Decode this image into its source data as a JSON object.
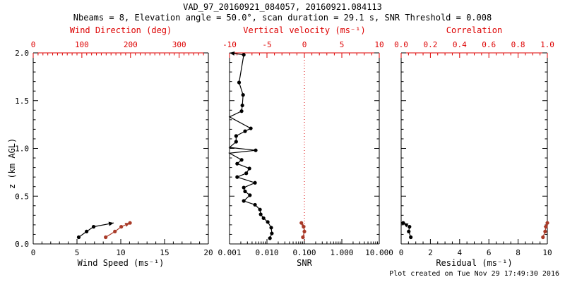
{
  "title": "VAD_97_20160921_084057, 20160921.084113",
  "subtitle": "Nbeams = 8, Elevation angle = 50.0°, scan duration = 29.1 s, SNR Threshold = 0.008",
  "footer": "Plot created on Tue Nov 29 17:49:30 2016",
  "ylabel": "z (km AGL)",
  "colors": {
    "black": "#000000",
    "axis_red": "#dd0000",
    "data_red": "#a93a28",
    "background": "#ffffff"
  },
  "yaxis": {
    "label": "z (km AGL)",
    "min": 0,
    "max": 2,
    "minor_step": 0.1,
    "ticks": [
      [
        0,
        "0.0"
      ],
      [
        0.5,
        "0.5"
      ],
      [
        1,
        "1.0"
      ],
      [
        1.5,
        "1.5"
      ],
      [
        2,
        "2.0"
      ]
    ]
  },
  "chart_data": [
    {
      "name": "wind-panel",
      "type": "line",
      "show_ylabels": true,
      "axes": {
        "bottom": {
          "label": "Wind Speed (ms⁻¹)",
          "scale": "linear",
          "min": 0,
          "max": 20,
          "minor_step": 1,
          "ticks": [
            [
              0,
              "0"
            ],
            [
              5,
              "5"
            ],
            [
              10,
              "10"
            ],
            [
              15,
              "15"
            ],
            [
              20,
              "20"
            ]
          ]
        },
        "top": {
          "label": "Wind Direction (deg)",
          "scale": "linear",
          "min": 0,
          "max": 360,
          "minor_step": 10,
          "ticks": [
            [
              0,
              "0"
            ],
            [
              100,
              "100"
            ],
            [
              200,
              "200"
            ],
            [
              300,
              "300"
            ]
          ]
        }
      },
      "series": [
        {
          "name": "wind-speed",
          "axis": "bottom",
          "color": "black",
          "arrow": true,
          "points": [
            [
              5.2,
              0.07
            ],
            [
              6.1,
              0.13
            ],
            [
              6.9,
              0.18
            ],
            [
              9.2,
              0.22,
              0
            ]
          ]
        },
        {
          "name": "wind-direction",
          "axis": "top",
          "color": "red",
          "arrow": true,
          "points": [
            [
              149,
              0.07
            ],
            [
              168,
              0.13
            ],
            [
              181,
              0.18
            ],
            [
              199,
              0.22
            ]
          ]
        }
      ]
    },
    {
      "name": "snr-panel",
      "type": "line",
      "show_ylabels": false,
      "axes": {
        "bottom": {
          "label": "SNR",
          "scale": "log",
          "min": 0.001,
          "max": 10,
          "ticks": [
            [
              0.001,
              "0.001"
            ],
            [
              0.01,
              "0.010"
            ],
            [
              0.1,
              "0.100"
            ],
            [
              1,
              "1.000"
            ],
            [
              10,
              "10.000"
            ]
          ]
        },
        "top": {
          "label": "Vertical velocity (ms⁻¹)",
          "scale": "linear",
          "min": -10,
          "max": 10,
          "minor_step": 1,
          "ticks": [
            [
              -10,
              "-10"
            ],
            [
              -5,
              "-5"
            ],
            [
              0,
              "0"
            ],
            [
              5,
              "5"
            ],
            [
              10,
              "10"
            ]
          ]
        }
      },
      "refline": {
        "axis": "top",
        "value": 0,
        "style": "dotted",
        "color": "red"
      },
      "series": [
        {
          "name": "snr-profile",
          "axis": "bottom",
          "color": "black",
          "arrow": true,
          "points": [
            [
              0.012,
              0.06
            ],
            [
              0.0135,
              0.11
            ],
            [
              0.013,
              0.17
            ],
            [
              0.0105,
              0.23
            ],
            [
              0.0081,
              0.27
            ],
            [
              0.0068,
              0.31
            ],
            [
              0.0065,
              0.36
            ],
            [
              0.0048,
              0.41
            ],
            [
              0.0024,
              0.45
            ],
            [
              0.0035,
              0.51
            ],
            [
              0.0026,
              0.55
            ],
            [
              0.0024,
              0.59
            ],
            [
              0.0048,
              0.64
            ],
            [
              0.0016,
              0.7
            ],
            [
              0.0028,
              0.74
            ],
            [
              0.0034,
              0.79
            ],
            [
              0.0016,
              0.84
            ],
            [
              0.0021,
              0.88
            ],
            [
              0.001,
              0.95,
              0
            ],
            [
              0.005,
              0.98
            ],
            [
              0.001,
              1.01,
              0
            ],
            [
              0.0015,
              1.07
            ],
            [
              0.0015,
              1.13
            ],
            [
              0.0026,
              1.18
            ],
            [
              0.0037,
              1.21
            ],
            [
              0.001,
              1.33,
              0
            ],
            [
              0.0021,
              1.39
            ],
            [
              0.0022,
              1.45
            ],
            [
              0.0023,
              1.56
            ],
            [
              0.0018,
              1.69
            ],
            [
              0.0024,
              1.98
            ],
            [
              0.001,
              2.0,
              0
            ]
          ]
        },
        {
          "name": "vertical-velocity",
          "axis": "top",
          "color": "red",
          "arrow": true,
          "points": [
            [
              -0.2,
              0.07
            ],
            [
              0,
              0.13
            ],
            [
              -0.1,
              0.18
            ],
            [
              -0.4,
              0.22
            ]
          ]
        }
      ]
    },
    {
      "name": "fit-panel",
      "type": "line",
      "show_ylabels": false,
      "axes": {
        "bottom": {
          "label": "Residual (ms⁻¹)",
          "scale": "linear",
          "min": 0,
          "max": 10,
          "minor_step": 0.5,
          "ticks": [
            [
              0,
              "0"
            ],
            [
              2,
              "2"
            ],
            [
              4,
              "4"
            ],
            [
              6,
              "6"
            ],
            [
              8,
              "8"
            ],
            [
              10,
              "10"
            ]
          ]
        },
        "top": {
          "label": "Correlation",
          "scale": "linear",
          "min": 0,
          "max": 1,
          "minor_step": 0.05,
          "ticks": [
            [
              0,
              "0.0"
            ],
            [
              0.2,
              "0.2"
            ],
            [
              0.4,
              "0.4"
            ],
            [
              0.6,
              "0.6"
            ],
            [
              0.8,
              "0.8"
            ],
            [
              1,
              "1.0"
            ]
          ]
        }
      },
      "series": [
        {
          "name": "residual",
          "axis": "bottom",
          "color": "black",
          "arrow": true,
          "points": [
            [
              0.66,
              0.07
            ],
            [
              0.52,
              0.13
            ],
            [
              0.57,
              0.18
            ],
            [
              0.14,
              0.22
            ]
          ]
        },
        {
          "name": "correlation",
          "axis": "top",
          "color": "red",
          "arrow": true,
          "points": [
            [
              0.97,
              0.07
            ],
            [
              0.985,
              0.13
            ],
            [
              0.99,
              0.18
            ],
            [
              1.0,
              0.22
            ]
          ]
        }
      ]
    }
  ]
}
